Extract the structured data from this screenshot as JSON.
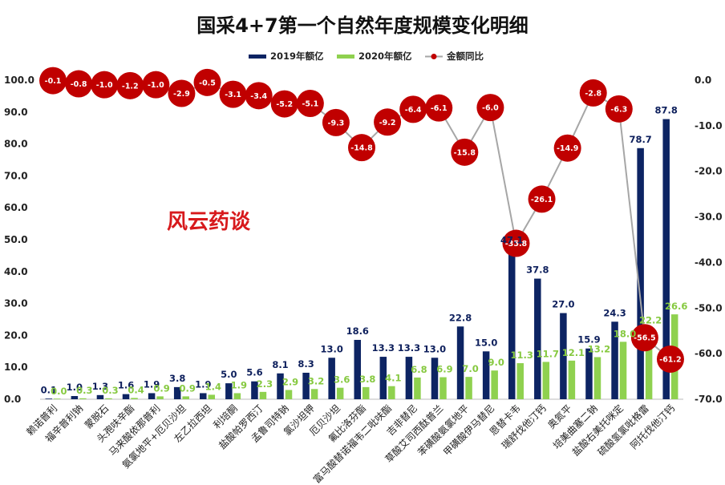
{
  "chart_data": {
    "type": "bar",
    "title": "国采4+7第一个自然年度规模变化明细",
    "categories": [
      "赖诺普利",
      "福辛普利钠",
      "蒙脱石",
      "头孢呋辛酯",
      "马来酸依那普利",
      "氨氯地平+厄贝沙坦",
      "左乙拉西坦",
      "利培酮",
      "盐酸帕罗西汀",
      "孟鲁司特钠",
      "氯沙坦钾",
      "厄贝沙坦",
      "氟比洛芬酯",
      "富马酸替诺福韦二吡呋酯",
      "吉非替尼",
      "草酸艾司西酞普兰",
      "苯磺酸氨氯地平",
      "甲磺酸伊马替尼",
      "恩替卡韦",
      "瑞舒伐他汀钙",
      "奥氮平",
      "培美曲塞二钠",
      "盐酸右美托咪定",
      "硫酸氢氯吡格雷",
      "阿托伐他汀钙"
    ],
    "series": [
      {
        "name": "2019年额亿",
        "type": "bar",
        "color": "#0d2463",
        "labels": [
          "0.1",
          "1.0",
          "1.3",
          "1.6",
          "1.9",
          "3.8",
          "1.9",
          "5.0",
          "5.6",
          "8.1",
          "8.3",
          "13.0",
          "18.6",
          "13.3",
          "13.3",
          "13.0",
          "22.8",
          "15.0",
          "47.1",
          "37.8",
          "27.0",
          "15.9",
          "24.3",
          "78.7",
          "87.8"
        ],
        "values": [
          0.1,
          1.0,
          1.3,
          1.6,
          1.9,
          3.8,
          1.9,
          5.0,
          5.6,
          8.1,
          8.3,
          13.0,
          18.6,
          13.3,
          13.3,
          13.0,
          22.8,
          15.0,
          47.1,
          37.8,
          27.0,
          15.9,
          24.3,
          78.7,
          87.8
        ]
      },
      {
        "name": "2020年额亿",
        "type": "bar",
        "color": "#8fd14f",
        "labels": [
          "0.0",
          "0.3",
          "0.3",
          "0.4",
          "0.9",
          "0.9",
          "1.4",
          "1.9",
          "2.3",
          "2.9",
          "3.2",
          "3.6",
          "3.8",
          "4.1",
          "6.8",
          "6.9",
          "7.0",
          "9.0",
          "11.3",
          "11.7",
          "12.1",
          "13.2",
          "18.0",
          "22.2",
          "26.6"
        ],
        "values": [
          0.0,
          0.3,
          0.3,
          0.4,
          0.9,
          0.9,
          1.4,
          1.9,
          2.3,
          2.9,
          3.2,
          3.6,
          3.8,
          4.1,
          6.8,
          6.9,
          7.0,
          9.0,
          11.3,
          11.7,
          12.1,
          13.2,
          18.0,
          22.2,
          26.6
        ]
      },
      {
        "name": "金额同比",
        "type": "line",
        "axis": "right",
        "color": "#c00000",
        "labels": [
          "-0.1",
          "-0.8",
          "-1.0",
          "-1.2",
          "-1.0",
          "-2.9",
          "-0.5",
          "-3.1",
          "-3.4",
          "-5.2",
          "-5.1",
          "-9.3",
          "-14.8",
          "-9.2",
          "-6.4",
          "-6.1",
          "-15.8",
          "-6.0",
          "-35.8",
          "-26.1",
          "-14.9",
          "-2.8",
          "-6.3",
          "-56.5",
          "-61.2"
        ],
        "values": [
          -0.1,
          -0.8,
          -1.0,
          -1.2,
          -1.0,
          -2.9,
          -0.5,
          -3.1,
          -3.4,
          -5.2,
          -5.1,
          -9.3,
          -14.8,
          -9.2,
          -6.4,
          -6.1,
          -15.8,
          -6.0,
          -35.8,
          -26.1,
          -14.9,
          -2.8,
          -6.3,
          -56.5,
          -61.2
        ]
      }
    ],
    "y_left": {
      "range": [
        0,
        100
      ],
      "ticks": [
        "0.0",
        "10.0",
        "20.0",
        "30.0",
        "40.0",
        "50.0",
        "60.0",
        "70.0",
        "80.0",
        "90.0",
        "100.0"
      ]
    },
    "y_right": {
      "range": [
        -70,
        0
      ],
      "ticks": [
        "0.0",
        "-10.0",
        "-20.0",
        "-30.0",
        "-40.0",
        "-50.0",
        "-60.0",
        "-70.0"
      ]
    },
    "legend_position": "top-center",
    "grid": false,
    "watermark": "风云药谈"
  }
}
